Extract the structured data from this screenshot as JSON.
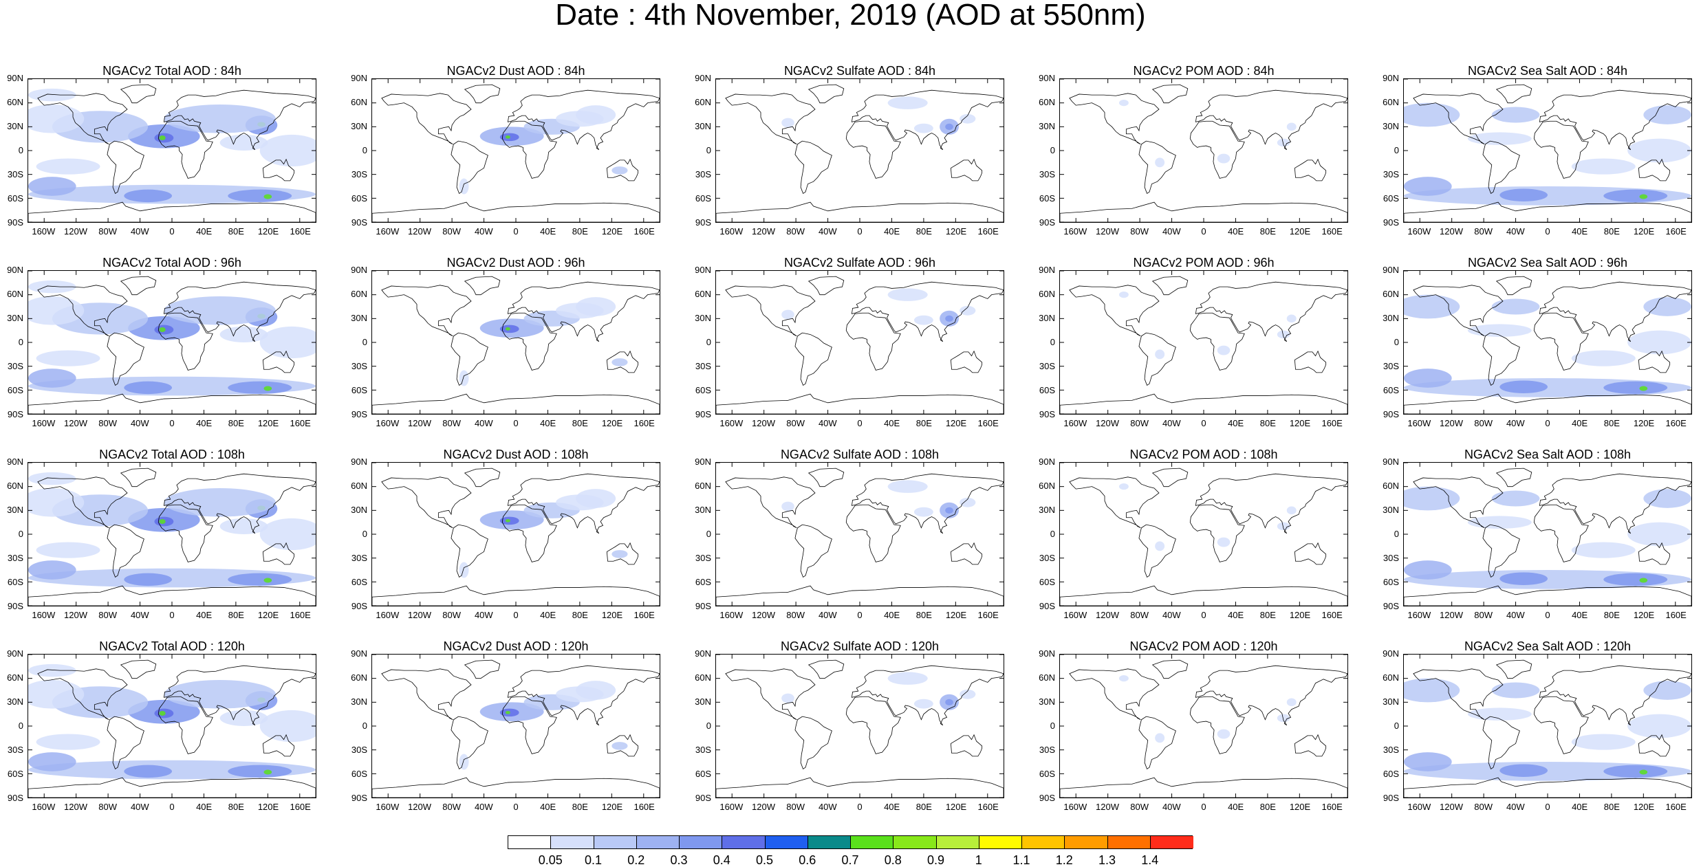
{
  "figure": {
    "title": "Date : 4th November, 2019 (AOD at 550nm)"
  },
  "panels": [
    {
      "title": "NGACv2 Total AOD : 84h",
      "species": "total"
    },
    {
      "title": "NGACv2 Dust AOD : 84h",
      "species": "dust"
    },
    {
      "title": "NGACv2 Sulfate AOD : 84h",
      "species": "sulfate"
    },
    {
      "title": "NGACv2 POM AOD : 84h",
      "species": "pom"
    },
    {
      "title": "NGACv2 Sea Salt AOD : 84h",
      "species": "seasalt"
    },
    {
      "title": "NGACv2 Total AOD : 96h",
      "species": "total"
    },
    {
      "title": "NGACv2 Dust AOD : 96h",
      "species": "dust"
    },
    {
      "title": "NGACv2 Sulfate AOD : 96h",
      "species": "sulfate"
    },
    {
      "title": "NGACv2 POM AOD : 96h",
      "species": "pom"
    },
    {
      "title": "NGACv2 Sea Salt AOD : 96h",
      "species": "seasalt"
    },
    {
      "title": "NGACv2 Total AOD : 108h",
      "species": "total"
    },
    {
      "title": "NGACv2 Dust AOD : 108h",
      "species": "dust"
    },
    {
      "title": "NGACv2 Sulfate AOD : 108h",
      "species": "sulfate"
    },
    {
      "title": "NGACv2 POM AOD : 108h",
      "species": "pom"
    },
    {
      "title": "NGACv2 Sea Salt AOD : 108h",
      "species": "seasalt"
    },
    {
      "title": "NGACv2 Total AOD : 120h",
      "species": "total"
    },
    {
      "title": "NGACv2 Dust AOD : 120h",
      "species": "dust"
    },
    {
      "title": "NGACv2 Sulfate AOD : 120h",
      "species": "sulfate"
    },
    {
      "title": "NGACv2 POM AOD : 120h",
      "species": "pom"
    },
    {
      "title": "NGACv2 Sea Salt  AOD : 120h",
      "species": "seasalt"
    }
  ],
  "axes": {
    "lat_labels": [
      "90N",
      "60N",
      "30N",
      "0",
      "30S",
      "60S",
      "90S"
    ],
    "lat_values": [
      90,
      60,
      30,
      0,
      -30,
      -60,
      -90
    ],
    "lon_labels": [
      "160W",
      "120W",
      "80W",
      "40W",
      "0",
      "40E",
      "80E",
      "120E",
      "160E"
    ],
    "lon_values": [
      -160,
      -120,
      -80,
      -40,
      0,
      40,
      80,
      120,
      160
    ],
    "lon_range": [
      -180,
      180
    ],
    "lat_range": [
      -90,
      90
    ]
  },
  "colorbar": {
    "labels": [
      "0.05",
      "0.1",
      "0.2",
      "0.3",
      "0.4",
      "0.5",
      "0.6",
      "0.7",
      "0.8",
      "0.9",
      "1",
      "1.1",
      "1.2",
      "1.3",
      "1.4"
    ],
    "colors": [
      "#ffffff",
      "#d6e0fb",
      "#b9c9f6",
      "#9eb2f2",
      "#7f98ef",
      "#5f6fe8",
      "#1f5ff0",
      "#0a8a8a",
      "#5ae01c",
      "#88e81a",
      "#b8ef3a",
      "#fffb00",
      "#ffc400",
      "#ff9c00",
      "#ff7000",
      "#ff2c1a"
    ]
  }
}
